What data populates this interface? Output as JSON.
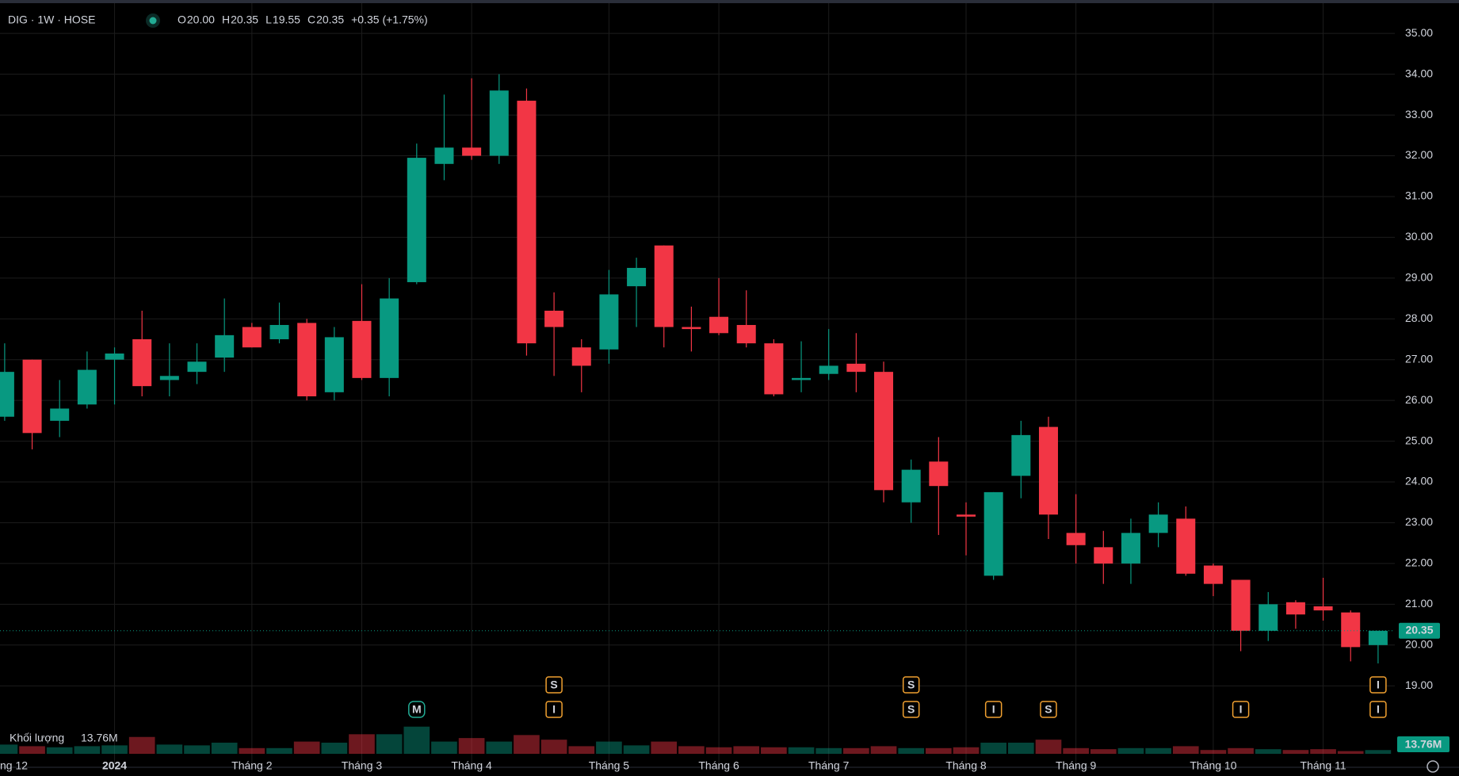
{
  "chart_data": {
    "type": "candlestick",
    "symbol": "DIG · 1W · HOSE",
    "ohlc_labels": [
      "O",
      "H",
      "L",
      "C"
    ],
    "ohlc_values": [
      "20.00",
      "20.35",
      "19.55",
      "20.35"
    ],
    "change": "+0.35 (+1.75%)",
    "categories": [
      "ng 12",
      null,
      null,
      null,
      "2024",
      null,
      null,
      null,
      null,
      "Tháng 2",
      null,
      null,
      null,
      "Tháng 3",
      null,
      null,
      null,
      "Tháng 4",
      null,
      null,
      null,
      null,
      "Tháng 5",
      null,
      null,
      null,
      "Tháng 6",
      null,
      null,
      null,
      "Tháng 7",
      null,
      null,
      null,
      null,
      "Tháng 8",
      null,
      null,
      null,
      "Tháng 9",
      null,
      null,
      null,
      null,
      "Tháng 10",
      null,
      null,
      null,
      "Tháng 11",
      null,
      null
    ],
    "open": [
      25.6,
      27.0,
      25.5,
      25.9,
      27.0,
      27.5,
      26.5,
      26.7,
      27.05,
      27.8,
      27.5,
      27.9,
      26.2,
      27.95,
      26.55,
      28.9,
      31.8,
      32.2,
      32.0,
      33.35,
      28.2,
      27.3,
      27.25,
      28.8,
      29.8,
      27.8,
      28.05,
      27.85,
      27.4,
      26.5,
      26.65,
      26.9,
      26.7,
      23.5,
      24.5,
      23.2,
      21.7,
      24.15,
      25.35,
      22.75,
      22.4,
      22.0,
      22.75,
      23.1,
      21.95,
      21.6,
      20.35,
      21.05,
      20.95,
      20.8,
      20.0
    ],
    "high": [
      27.4,
      27.0,
      26.5,
      27.2,
      27.3,
      28.2,
      27.4,
      27.4,
      28.5,
      27.9,
      28.4,
      28.0,
      27.8,
      28.85,
      29.0,
      32.3,
      33.5,
      33.9,
      34.0,
      33.65,
      28.65,
      27.5,
      29.2,
      29.5,
      29.8,
      28.3,
      29.0,
      28.7,
      27.5,
      27.45,
      27.75,
      27.65,
      26.95,
      24.55,
      25.1,
      23.5,
      23.75,
      25.5,
      25.6,
      23.7,
      22.8,
      23.1,
      23.5,
      23.4,
      22.0,
      21.6,
      21.3,
      21.1,
      21.65,
      20.85,
      20.35
    ],
    "low": [
      25.5,
      24.8,
      25.1,
      25.8,
      25.9,
      26.1,
      26.1,
      26.4,
      26.7,
      27.3,
      27.4,
      26.0,
      26.0,
      26.5,
      26.1,
      28.85,
      31.4,
      31.9,
      31.8,
      27.1,
      26.6,
      26.2,
      26.9,
      27.8,
      27.3,
      27.2,
      27.6,
      27.3,
      26.1,
      26.2,
      26.5,
      26.2,
      23.5,
      23.0,
      22.7,
      22.2,
      21.6,
      23.6,
      22.6,
      22.0,
      21.5,
      21.5,
      22.4,
      21.7,
      21.2,
      19.85,
      20.1,
      20.4,
      20.6,
      19.6,
      19.55
    ],
    "close": [
      26.7,
      25.2,
      25.8,
      26.75,
      27.15,
      26.35,
      26.6,
      26.95,
      27.6,
      27.3,
      27.85,
      26.1,
      27.55,
      26.55,
      28.5,
      31.95,
      32.2,
      32.0,
      33.6,
      27.4,
      27.8,
      26.85,
      28.6,
      29.25,
      27.8,
      27.75,
      27.65,
      27.4,
      26.15,
      26.55,
      26.85,
      26.7,
      23.8,
      24.3,
      23.9,
      23.15,
      23.75,
      25.15,
      23.2,
      22.45,
      22.0,
      22.75,
      23.2,
      21.75,
      21.5,
      20.35,
      21.0,
      20.75,
      20.85,
      19.95,
      20.35
    ],
    "volume_title": "Khối lượng",
    "volume_label": "13.76M",
    "volume": [
      34,
      28,
      24,
      28,
      31,
      62,
      34,
      31,
      41,
      21,
      21,
      45,
      41,
      72,
      72,
      100,
      45,
      58,
      45,
      69,
      52,
      28,
      45,
      31,
      45,
      28,
      24,
      28,
      24,
      24,
      21,
      21,
      28,
      21,
      21,
      24,
      41,
      41,
      52,
      21,
      17,
      21,
      21,
      28,
      14,
      21,
      17,
      14,
      17,
      10,
      13.76
    ],
    "volume_lim": [
      0,
      350
    ],
    "up_color": "#089981",
    "down_color": "#f23645",
    "ylim": [
      18.13,
      35.82
    ],
    "yticks": [
      {
        "value": 19,
        "label": "19.00"
      },
      {
        "value": 20,
        "label": "20.00"
      },
      {
        "value": 21,
        "label": "21.00"
      },
      {
        "value": 22,
        "label": "22.00"
      },
      {
        "value": 23,
        "label": "23.00"
      },
      {
        "value": 24,
        "label": "24.00"
      },
      {
        "value": 25,
        "label": "25.00"
      },
      {
        "value": 26,
        "label": "26.00"
      },
      {
        "value": 27,
        "label": "27.00"
      },
      {
        "value": 28,
        "label": "28.00"
      },
      {
        "value": 29,
        "label": "29.00"
      },
      {
        "value": 30,
        "label": "30.00"
      },
      {
        "value": 31,
        "label": "31.00"
      },
      {
        "value": 32,
        "label": "32.00"
      },
      {
        "value": 33,
        "label": "33.00"
      },
      {
        "value": 34,
        "label": "34.00"
      },
      {
        "value": 35,
        "label": "35.00"
      }
    ],
    "last_price": {
      "value": 20.35,
      "label": "20.35"
    },
    "events": {
      "15": [
        "M"
      ],
      "20": [
        "S",
        "I"
      ],
      "33": [
        "S",
        "S"
      ],
      "36": [
        "I"
      ],
      "38": [
        "S"
      ],
      "45": [
        "I"
      ],
      "50": [
        "I",
        "I"
      ]
    },
    "grid": true
  }
}
